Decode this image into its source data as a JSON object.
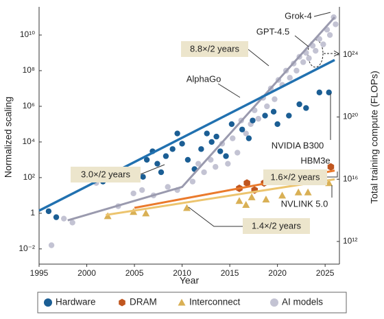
{
  "chart_data": {
    "type": "scatter",
    "xlabel": "Year",
    "ylabel": "Normalized scaling",
    "y2label": "Total training compute (FLOPs)",
    "xlim": [
      1995,
      2026.5
    ],
    "xticks": [
      1995,
      2000,
      2005,
      2010,
      2015,
      2020,
      2025
    ],
    "ylim": [
      0.0014,
      380000000000.0
    ],
    "log_y": true,
    "yticks": [
      {
        "value": 0.01,
        "label": "10⁻²"
      },
      1,
      {
        "value": 100,
        "label": "10²"
      },
      {
        "value": 10000,
        "label": "10⁴"
      },
      {
        "value": 1000000,
        "label": "10⁶"
      },
      {
        "value": 100000000,
        "label": "10⁸"
      },
      {
        "value": 10000000000,
        "label": "10¹⁰"
      }
    ],
    "y2lim": [
      35000000000.0,
      1.2e+27
    ],
    "y2ticks": [
      {
        "value": 1000000000000.0,
        "label": "10¹²"
      },
      {
        "value": 1e+16,
        "label": "10¹⁶"
      },
      {
        "value": 1e+20,
        "label": "10²⁰"
      },
      {
        "value": 1e+24,
        "label": "10²⁴"
      }
    ],
    "legend": "bottom",
    "series": [
      {
        "name": "Hardware",
        "color": "#1b5e94",
        "marker": "circle",
        "trend_color": "#2171b0",
        "x": [
          1996,
          1996.8,
          2001.7,
          2005.9,
          2006.3,
          2006.9,
          2007.4,
          2007.8,
          2008.3,
          2009,
          2009.5,
          2010,
          2010.6,
          2011.3,
          2012,
          2012.6,
          2013.1,
          2013.6,
          2014,
          2014.6,
          2015.2,
          2016.3,
          2017,
          2017.4,
          2018.7,
          2019.6,
          2020,
          2021.2,
          2022.3,
          2023,
          2024.4,
          2025.4
        ],
        "values": [
          1.3,
          0.6,
          60,
          110,
          1000,
          3000,
          600,
          200,
          1600,
          4000,
          30000,
          8000,
          1000,
          300,
          4000,
          30000,
          10000,
          20000,
          3000,
          1600,
          100000,
          50000,
          16000,
          160000,
          300000,
          500000,
          100000,
          300000,
          1300000,
          800000,
          6000000,
          6000000
        ],
        "trend": {
          "x": [
            1995,
            2026
          ],
          "values": [
            1.4,
            400000000
          ]
        }
      },
      {
        "name": "DRAM",
        "color": "#c0561f",
        "marker": "hexagon",
        "trend_color": "#ea7a2c",
        "x": [
          2016,
          2016.8,
          2017.6,
          2018.6,
          2019.6,
          2021.2,
          2022,
          2023.1,
          2025.6
        ],
        "values": [
          25,
          50,
          20,
          50,
          80,
          160,
          160,
          130,
          400
        ],
        "trend": {
          "x": [
            2005,
            2026
          ],
          "values": [
            2,
            250
          ]
        }
      },
      {
        "name": "Interconnect",
        "color": "#d9b055",
        "marker": "triangle",
        "trend_color": "#ecc46e",
        "x": [
          2002.2,
          2004.9,
          2006.2,
          2010.5,
          2016,
          2016.7,
          2017.3,
          2018.8,
          2020.5,
          2022.2,
          2023.2,
          2025.4
        ],
        "values": [
          0.7,
          1.2,
          1,
          2,
          5,
          3,
          8,
          6,
          10,
          15,
          15,
          50
        ],
        "trend": {
          "x": [
            2002,
            2026
          ],
          "values": [
            0.8,
            80
          ]
        }
      },
      {
        "name": "AI models",
        "color": "#c3c3d3",
        "marker": "circle",
        "trend_color": "#9a9aae",
        "x": [
          1996.3,
          1997.6,
          1998.5,
          2001,
          2003.3,
          2004.9,
          2005.8,
          2007,
          2008.5,
          2009.5,
          2011.1,
          2011.7,
          2012.3,
          2013,
          2013.5,
          2014.2,
          2014.8,
          2015.3,
          2015.8,
          2016.2,
          2016.7,
          2017.2,
          2017.6,
          2018,
          2018.5,
          2018.9,
          2019.3,
          2019.7,
          2020.1,
          2020.5,
          2020.9,
          2021.3,
          2021.7,
          2022,
          2022.3,
          2022.7,
          2023,
          2023.3,
          2023.7,
          2024,
          2024.4,
          2024.8,
          2025.2,
          2025.5,
          2025.9,
          2026.1
        ],
        "values": [
          0.016,
          0.5,
          0.3,
          50,
          2.5,
          13,
          20,
          10,
          30,
          20,
          60,
          600,
          200,
          1000,
          400,
          8000,
          600,
          16000,
          2500,
          160000,
          30000,
          100000,
          600000,
          200000,
          3000000,
          1000000,
          10000000,
          2500000,
          30000000,
          16000000,
          100000000,
          40000000,
          250000000,
          100000000,
          600000000,
          300000000,
          1000000000,
          500000000,
          2500000000,
          1300000000,
          6000000000,
          3000000000,
          20000000000,
          10000000000,
          100000000000,
          40000000000
        ],
        "trend": {
          "x": [
            1998,
            2010,
            2026
          ],
          "values": [
            0.4,
            30,
            100000000000
          ]
        }
      }
    ],
    "rate_labels": [
      "8.8×/2 years",
      "3.0×/2 years",
      "1.6×/2 years",
      "1.4×/2 years"
    ],
    "labels": [
      "AlphaGo",
      "GPT-4.5",
      "Grok-4",
      "NVIDIA B300",
      "HBM3e",
      "NVLINK 5.0"
    ]
  }
}
